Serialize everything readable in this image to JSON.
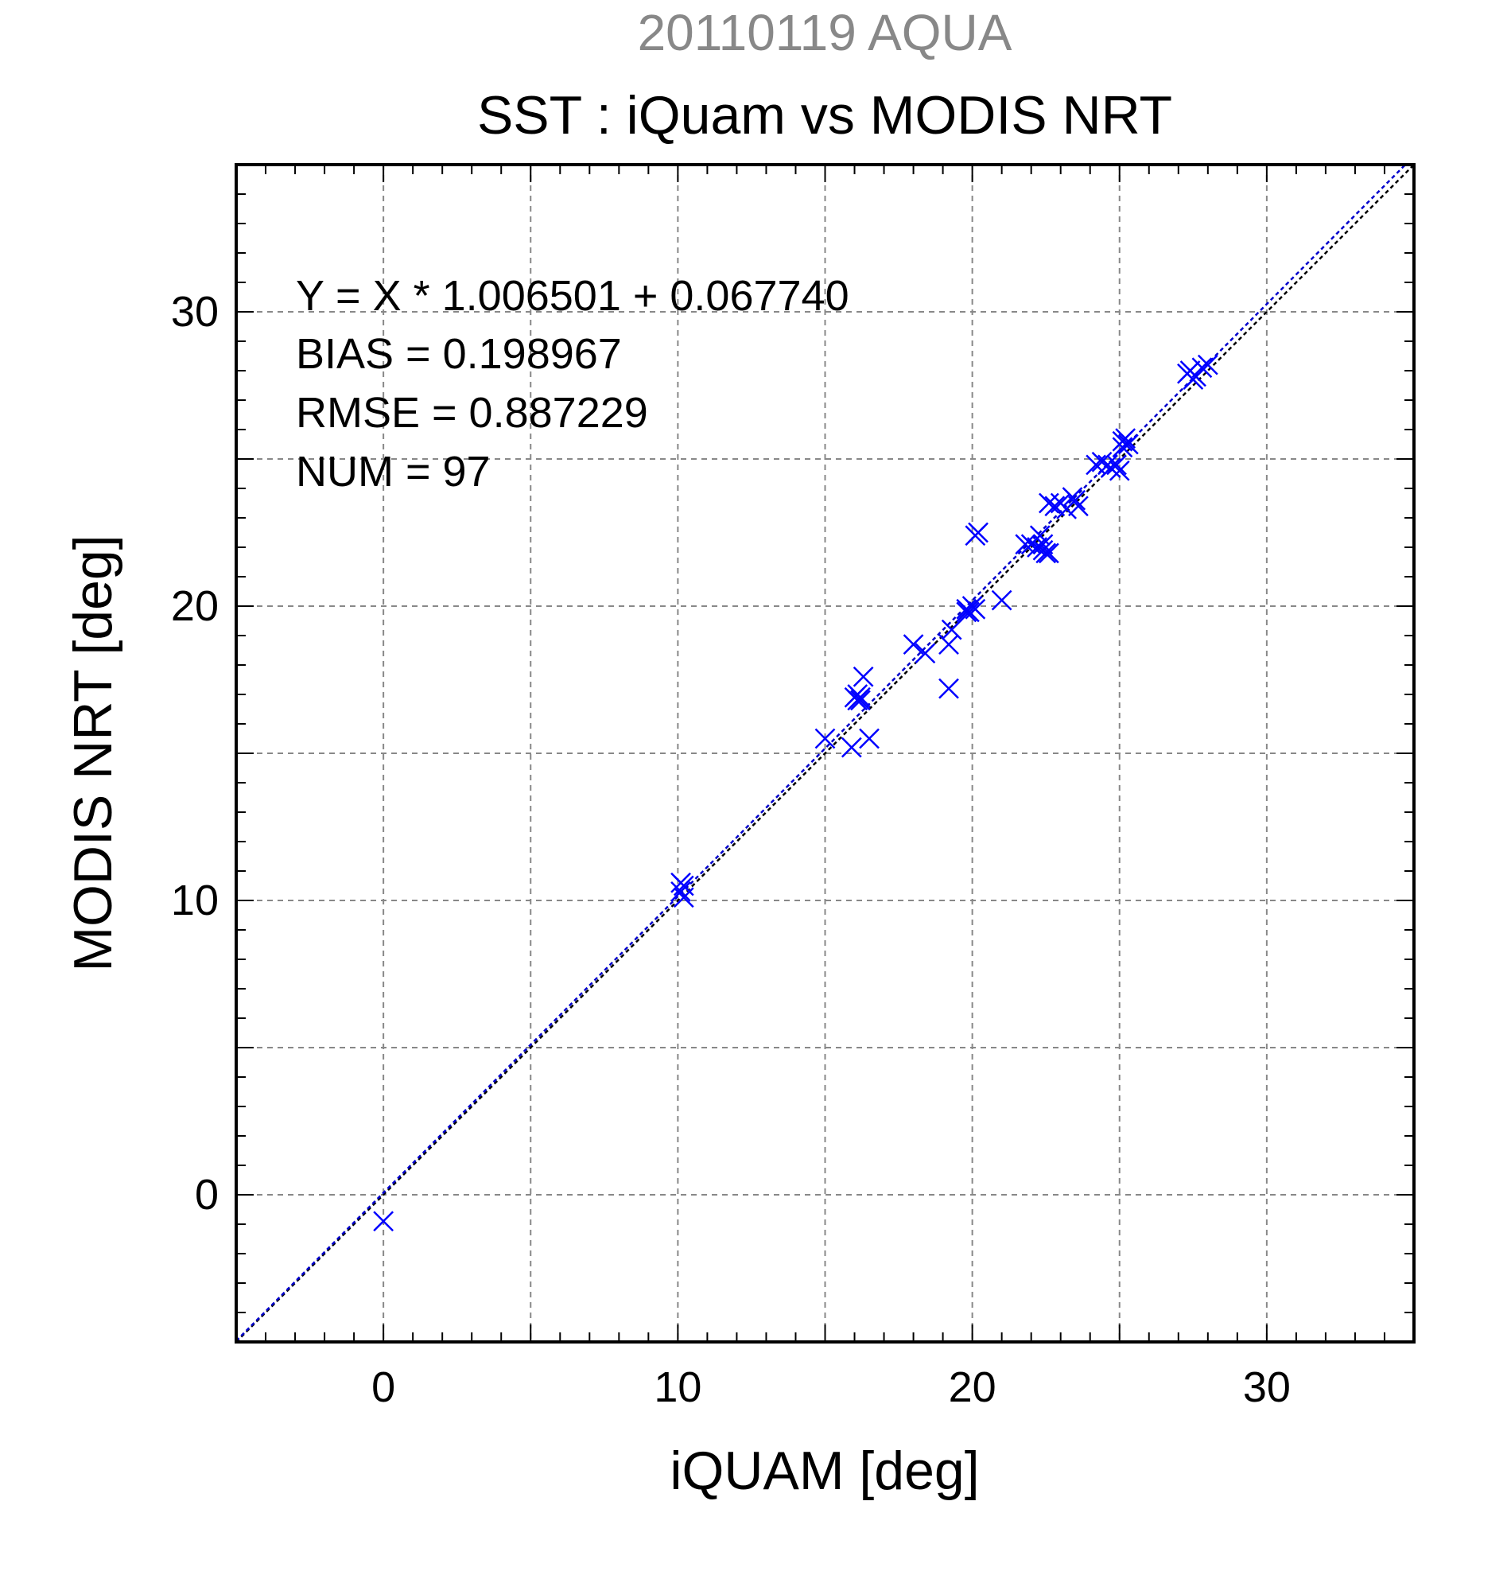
{
  "chart_data": {
    "type": "scatter",
    "supertitle": "20110119 AQUA",
    "title": "SST : iQuam vs MODIS NRT",
    "xlabel": "iQUAM [deg]",
    "ylabel": "MODIS NRT [deg]",
    "xlim": [
      -5,
      35
    ],
    "ylim": [
      -5,
      35
    ],
    "xticks": [
      0,
      10,
      20,
      30
    ],
    "yticks": [
      0,
      10,
      20,
      30
    ],
    "xtick_labels": [
      "0",
      "10",
      "20",
      "30"
    ],
    "ytick_labels": [
      "0",
      "10",
      "20",
      "30"
    ],
    "grid": true,
    "colors": {
      "points": "#0000ff",
      "fit_line": "#0000cc",
      "identity_line": "#000000",
      "supertitle": "#888888",
      "grid": "#888888"
    },
    "stats": [
      "Y = X * 1.006501 + 0.067740",
      "BIAS = 0.198967",
      "RMSE = 0.887229",
      "NUM = 97"
    ],
    "fit": {
      "slope": 1.006501,
      "intercept": 0.06774
    },
    "identity": {
      "slope": 1.0,
      "intercept": 0.0
    },
    "points": [
      [
        0.0,
        -0.9
      ],
      [
        10.1,
        10.6
      ],
      [
        10.2,
        10.5
      ],
      [
        10.2,
        10.1
      ],
      [
        10.1,
        10.3
      ],
      [
        15.0,
        15.5
      ],
      [
        15.9,
        15.2
      ],
      [
        16.5,
        15.5
      ],
      [
        16.0,
        16.9
      ],
      [
        16.2,
        16.8
      ],
      [
        16.1,
        17.0
      ],
      [
        16.2,
        16.9
      ],
      [
        16.3,
        17.6
      ],
      [
        16.1,
        16.8
      ],
      [
        18.0,
        18.7
      ],
      [
        18.4,
        18.4
      ],
      [
        19.2,
        18.7
      ],
      [
        19.3,
        19.2
      ],
      [
        19.2,
        17.2
      ],
      [
        19.8,
        19.9
      ],
      [
        19.9,
        19.8
      ],
      [
        20.0,
        20.0
      ],
      [
        20.1,
        19.9
      ],
      [
        19.8,
        19.8
      ],
      [
        20.2,
        22.5
      ],
      [
        20.1,
        22.4
      ],
      [
        21.0,
        20.2
      ],
      [
        21.8,
        22.1
      ],
      [
        22.0,
        22.1
      ],
      [
        22.2,
        22.0
      ],
      [
        22.3,
        22.4
      ],
      [
        22.4,
        21.9
      ],
      [
        22.5,
        21.8
      ],
      [
        22.6,
        21.8
      ],
      [
        22.4,
        22.1
      ],
      [
        22.6,
        23.5
      ],
      [
        22.8,
        23.4
      ],
      [
        23.0,
        23.5
      ],
      [
        23.2,
        23.3
      ],
      [
        23.5,
        23.6
      ],
      [
        23.6,
        23.4
      ],
      [
        23.4,
        23.7
      ],
      [
        24.2,
        24.8
      ],
      [
        24.4,
        24.9
      ],
      [
        24.6,
        24.8
      ],
      [
        24.7,
        24.7
      ],
      [
        24.9,
        24.8
      ],
      [
        25.0,
        24.6
      ],
      [
        25.1,
        25.4
      ],
      [
        25.2,
        25.7
      ],
      [
        25.3,
        25.5
      ],
      [
        25.1,
        25.6
      ],
      [
        27.3,
        27.9
      ],
      [
        27.5,
        27.7
      ],
      [
        27.6,
        27.8
      ],
      [
        27.4,
        28.0
      ],
      [
        27.8,
        28.1
      ],
      [
        28.0,
        28.2
      ]
    ]
  }
}
